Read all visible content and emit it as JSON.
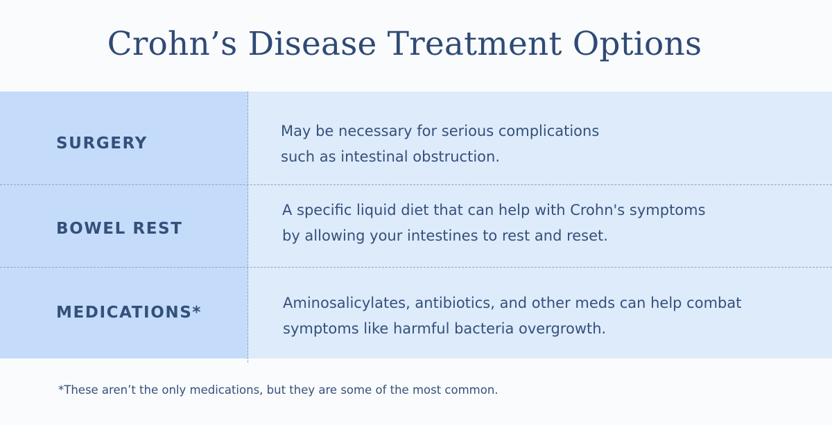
{
  "title": "Crohn’s Disease Treatment Options",
  "rows": [
    {
      "label": "SURGERY",
      "description_lines": [
        "May be necessary for serious complications",
        "such as intestinal obstruction."
      ]
    },
    {
      "label": "BOWEL REST",
      "description_lines": [
        "A specific liquid diet that can help with Crohn's symptoms",
        "by allowing your intestines to rest and reset."
      ]
    },
    {
      "label": "MEDICATIONS*",
      "description_lines": [
        "Aminosalicylates, antibiotics, and other meds can help combat",
        "symptoms like harmful bacteria overgrowth."
      ]
    }
  ],
  "footnote": "*These aren’t the only medications, but they are some of the most common.",
  "colors": {
    "title_text": "#2f4a75",
    "body_text": "#34507a",
    "label_column_bg": "#c4dcfa",
    "description_bg": "#deebfb",
    "page_bg": "#fafbfd",
    "divider": "#8ea2bd"
  }
}
